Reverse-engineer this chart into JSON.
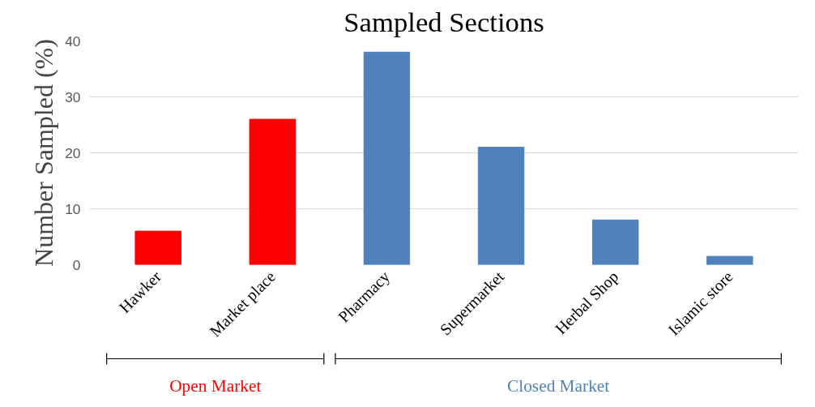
{
  "chart_data": {
    "type": "bar",
    "title": "Sampled Sections",
    "ylabel": "Number Sampled (%)",
    "categories": [
      "Hawker",
      "Market place",
      "Pharmacy",
      "Supermarket",
      "Herbal Shop",
      "Islamic store"
    ],
    "values": [
      6,
      26,
      38,
      21,
      8,
      1.5
    ],
    "colors": [
      "#ff0000",
      "#ff0000",
      "#4f81bd",
      "#4f81bd",
      "#4f81bd",
      "#4f81bd"
    ],
    "ylim": [
      0,
      40
    ],
    "yticks": [
      0,
      10,
      20,
      30,
      40
    ],
    "grid": "y",
    "annotations": [
      "Open Market",
      "Closed Market"
    ]
  }
}
